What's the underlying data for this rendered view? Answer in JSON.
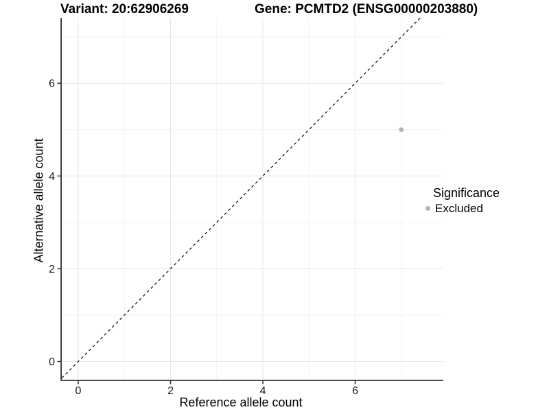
{
  "chart_data": {
    "type": "scatter",
    "title_left": "Variant: 20:62906269",
    "title_right": "Gene: PCMTD2 (ENSG00000203880)",
    "xlabel": "Reference allele count",
    "ylabel": "Alternative allele count",
    "x_ticks": [
      0,
      2,
      4,
      6
    ],
    "y_ticks": [
      0,
      2,
      4,
      6
    ],
    "x_minor": [
      1,
      3,
      5,
      7
    ],
    "y_minor": [
      1,
      3,
      5,
      7
    ],
    "xlim": [
      -0.357,
      7.91
    ],
    "ylim": [
      -0.393,
      7.41
    ],
    "grid": true,
    "points": [
      {
        "x": 7,
        "y": 5,
        "series": "Excluded"
      }
    ],
    "reference_line": {
      "slope": 1,
      "intercept": 0,
      "linetype": "dashed"
    },
    "legend": {
      "title": "Significance",
      "position": "right",
      "entries": [
        {
          "label": "Excluded",
          "color": "#b5b5b5"
        }
      ]
    },
    "colors": {
      "point": "#b5b5b5",
      "grid_major": "#e7e7e7",
      "grid_minor": "#f2f2f2",
      "axis_line": "#2f2f2f",
      "dashed_line": "#000000",
      "tick_label": "#1a1a1a"
    }
  }
}
